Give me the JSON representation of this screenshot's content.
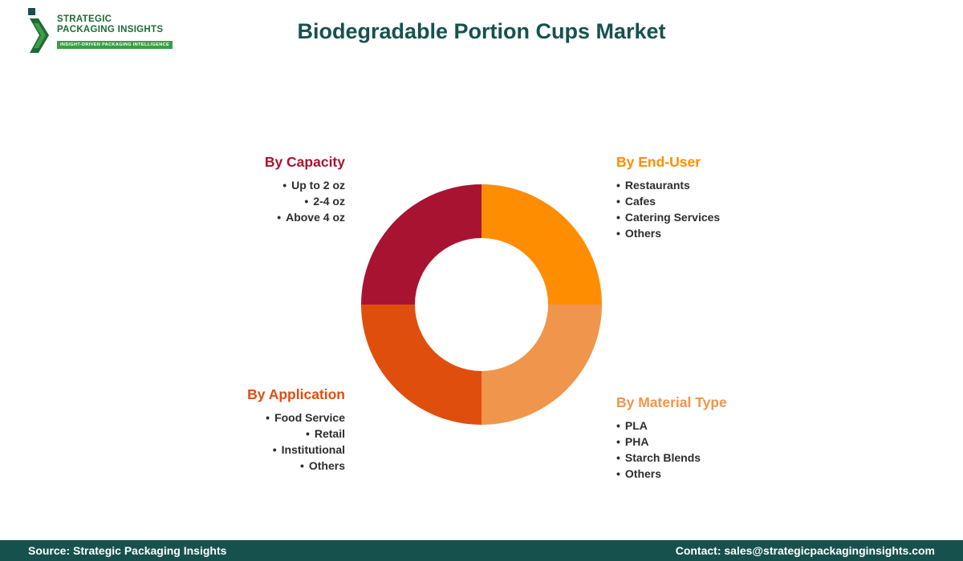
{
  "header": {
    "logo": {
      "line1": "STRATEGIC",
      "line2": "PACKAGING INSIGHTS",
      "tagline": "INSIGHT-DRIVEN PACKAGING INTELLIGENCE"
    },
    "title": "Biodegradable Portion Cups Market"
  },
  "chart_data": {
    "type": "pie",
    "subtype": "donut",
    "title": "Biodegradable Portion Cups Market",
    "legend_position": "around-chart",
    "segments": [
      {
        "label": "By End-User",
        "value": 25,
        "color": "#FE8D01",
        "position": "top-right"
      },
      {
        "label": "By Material Type",
        "value": 25,
        "color": "#F0954C",
        "position": "bottom-right"
      },
      {
        "label": "By Application",
        "value": 25,
        "color": "#E04E0E",
        "position": "bottom-left"
      },
      {
        "label": "By Capacity",
        "value": 25,
        "color": "#A81331",
        "position": "top-left"
      }
    ]
  },
  "categories": [
    {
      "id": "capacity",
      "heading": "By Capacity",
      "color": "#A81331",
      "items": [
        "Up to 2 oz",
        "2-4 oz",
        "Above 4 oz"
      ]
    },
    {
      "id": "end-user",
      "heading": "By End-User",
      "color": "#FE8D01",
      "items": [
        "Restaurants",
        "Cafes",
        "Catering Services",
        "Others"
      ]
    },
    {
      "id": "application",
      "heading": "By Application",
      "color": "#E04E0E",
      "items": [
        "Food Service",
        "Retail",
        "Institutional",
        "Others"
      ]
    },
    {
      "id": "material-type",
      "heading": "By Material Type",
      "color": "#F0954C",
      "items": [
        "PLA",
        "PHA",
        "Starch Blends",
        "Others"
      ]
    }
  ],
  "footer": {
    "source": "Source: Strategic Packaging Insights",
    "contact": "Contact: sales@strategicpackaginginsights.com"
  }
}
